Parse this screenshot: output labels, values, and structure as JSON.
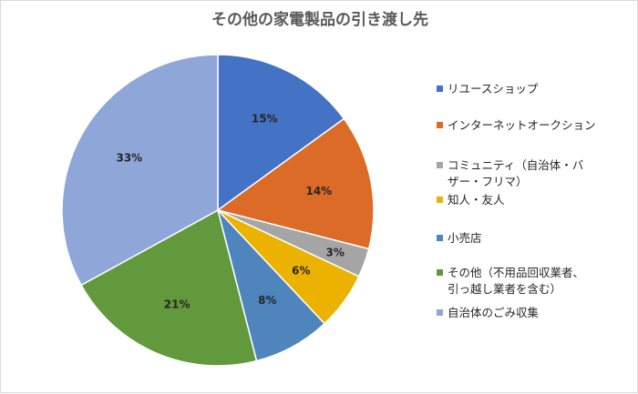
{
  "chart_data": {
    "type": "pie",
    "title": "その他の家電製品の引き渡し先",
    "categories": [
      "リユースショップ",
      "インターネットオークション",
      "コミュニティ（自治体・バザー・フリマ）",
      "知人・友人",
      "小売店",
      "その他（不用品回収業者、引っ越し業者を含む）",
      "自治体のごみ収集"
    ],
    "legend_lines": [
      [
        "リユースショップ"
      ],
      [
        "インターネットオークション"
      ],
      [
        "コミュニティ（自治体・バ",
        "ザー・フリマ）"
      ],
      [
        "知人・友人"
      ],
      [
        "小売店"
      ],
      [
        "その他（不用品回収業者、",
        "引っ越し業者を含む）"
      ],
      [
        "自治体のごみ収集"
      ]
    ],
    "values": [
      15,
      14,
      3,
      6,
      8,
      21,
      33
    ],
    "data_labels": [
      "15%",
      "14%",
      "3%",
      "6%",
      "8%",
      "21%",
      "33%"
    ],
    "colors": [
      "#4472c4",
      "#db6b27",
      "#a5a5a5",
      "#ecb200",
      "#4f85bd",
      "#62993c",
      "#8fa7d8"
    ],
    "legend_position": "right"
  }
}
